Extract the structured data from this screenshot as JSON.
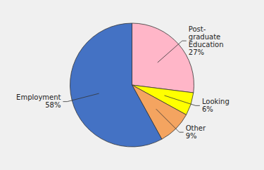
{
  "chart_data": {
    "type": "pie",
    "categories": [
      "Post-\ngraduate\nEducation\n27%",
      "Looking\n6%",
      "Other\n9%",
      "Employment\n58%"
    ],
    "values": [
      27,
      6,
      9,
      58
    ],
    "colors": [
      "#ffb6c8",
      "#ffff00",
      "#f4a460",
      "#4472c4"
    ]
  }
}
